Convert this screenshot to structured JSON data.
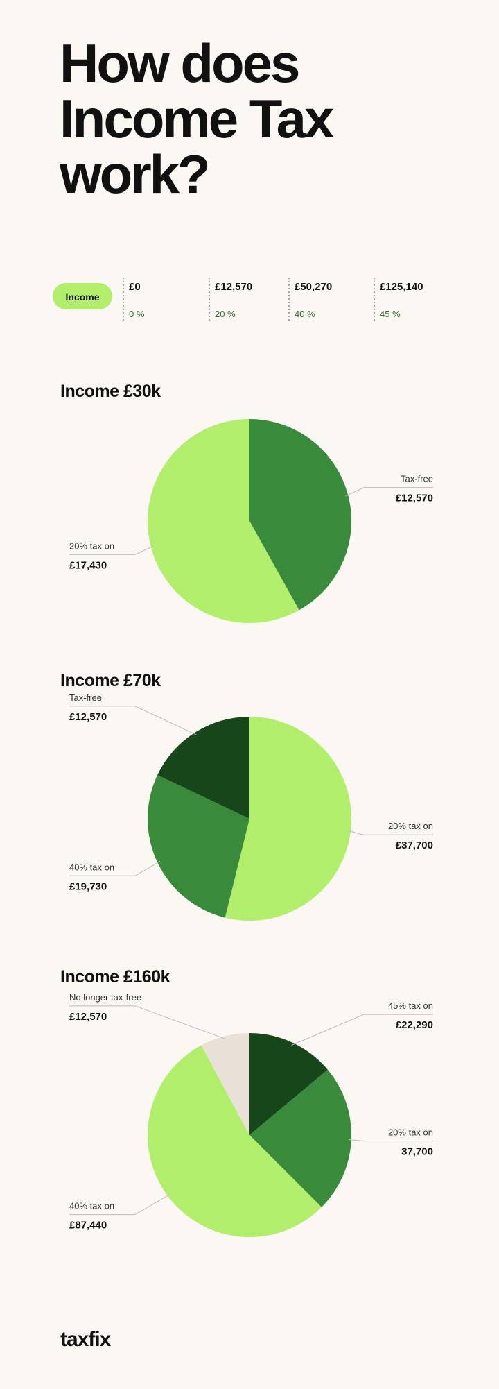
{
  "header": {
    "title_lines": [
      "How does",
      "Income Tax",
      "work?"
    ]
  },
  "bands": {
    "label": "Income",
    "thresholds": [
      "£0",
      "£12,570",
      "£50,270",
      "£125,140"
    ],
    "rates": [
      "0 %",
      "20 %",
      "40 %",
      "45 %"
    ]
  },
  "chart_data": [
    {
      "type": "pie",
      "title": "Income £30k",
      "categories": [
        "Tax-free",
        "20% tax on"
      ],
      "values": [
        12570,
        17430
      ],
      "value_labels": [
        "£12,570",
        "£17,430"
      ],
      "colors": [
        "#3a8a3c",
        "#b0ee6c"
      ]
    },
    {
      "type": "pie",
      "title": "Income £70k",
      "categories": [
        "20% tax on",
        "40% tax on",
        "Tax-free"
      ],
      "values": [
        37700,
        19730,
        12570
      ],
      "value_labels": [
        "£37,700",
        "£19,730",
        "£12,570"
      ],
      "colors": [
        "#b0ee6c",
        "#3a8a3c",
        "#17461a"
      ]
    },
    {
      "type": "pie",
      "title": "Income £160k",
      "categories": [
        "45% tax on",
        "20% tax on",
        "40% tax on",
        "No longer tax-free"
      ],
      "values": [
        22290,
        37700,
        87440,
        12570
      ],
      "value_labels": [
        "£22,290",
        "37,700",
        "£87,440",
        "£12,570"
      ],
      "colors": [
        "#17461a",
        "#3a8a3c",
        "#b0ee6c",
        "#e9e0d8"
      ]
    }
  ],
  "logo": "taxfix"
}
